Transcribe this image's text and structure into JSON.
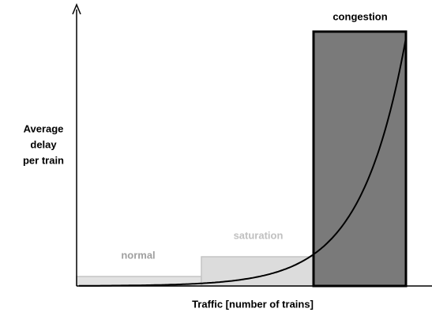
{
  "regions": {
    "normal": "normal",
    "saturation": "saturation",
    "congestion": "congestion"
  },
  "y_axis_label": [
    "Average",
    "delay",
    "per train"
  ],
  "x_axis_label": "Traffic [number of trains]"
}
